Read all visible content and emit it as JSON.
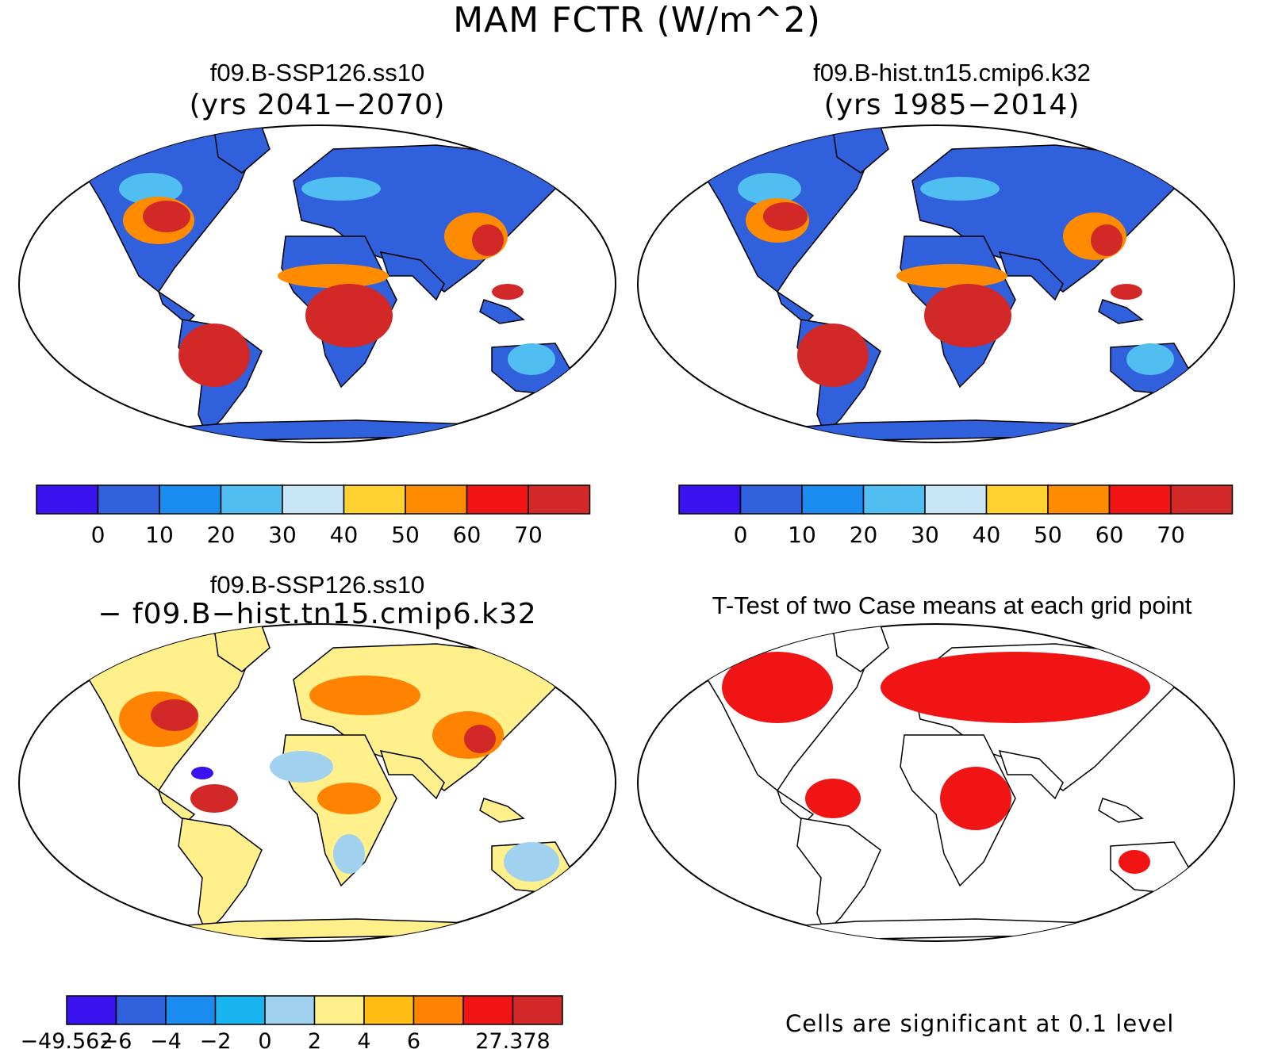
{
  "title": "MAM FCTR (W/m^2)",
  "panels": [
    {
      "title": "f09.B-SSP126.ss10",
      "subtitle": "(yrs 2041−2070)"
    },
    {
      "title": "f09.B-hist.tn15.cmip6.k32",
      "subtitle": "(yrs 1985−2014)"
    },
    {
      "title": "f09.B-SSP126.ss10",
      "subtitle": "− f09.B−hist.tn15.cmip6.k32"
    },
    {
      "title": "T-Test of two Case means at each grid point",
      "subtitle": ""
    }
  ],
  "colorbars": {
    "abs": {
      "colors": [
        "#3a12f0",
        "#3060dc",
        "#1a8cf0",
        "#50bef0",
        "#c8e6f5",
        "#ffd232",
        "#ff8c00",
        "#f01414",
        "#d22828"
      ],
      "ticks": [
        "0",
        "10",
        "20",
        "30",
        "40",
        "50",
        "60",
        "70"
      ]
    },
    "diff": {
      "colors": [
        "#3a12f0",
        "#3060dc",
        "#1a8cf0",
        "#18b4f0",
        "#a0d2f0",
        "#fff08c",
        "#ffbe14",
        "#ff8200",
        "#f01414",
        "#d22828"
      ],
      "ticks": [
        "−49.562",
        "−6",
        "−4",
        "−2",
        "0",
        "2",
        "4",
        "6",
        "",
        "27.378"
      ]
    }
  },
  "significance_note": "Cells are significant at 0.1 level",
  "map_fills": {
    "ocean": "#ffffff",
    "panel1": {
      "land": "#3060dc",
      "warm": "#ff8c00",
      "hot": "#d22828",
      "mid": "#50bef0"
    },
    "panel2": {
      "land": "#3060dc",
      "warm": "#ff8c00",
      "hot": "#d22828",
      "mid": "#50bef0"
    },
    "panel3": {
      "land": "#fff08c",
      "warm": "#ff8200",
      "hot": "#d22828",
      "mid": "#a0d2f0"
    },
    "panel4": {
      "land": "#ffffff",
      "warm": "#f01414",
      "hot": "#f01414",
      "mid": "#ffffff"
    }
  }
}
